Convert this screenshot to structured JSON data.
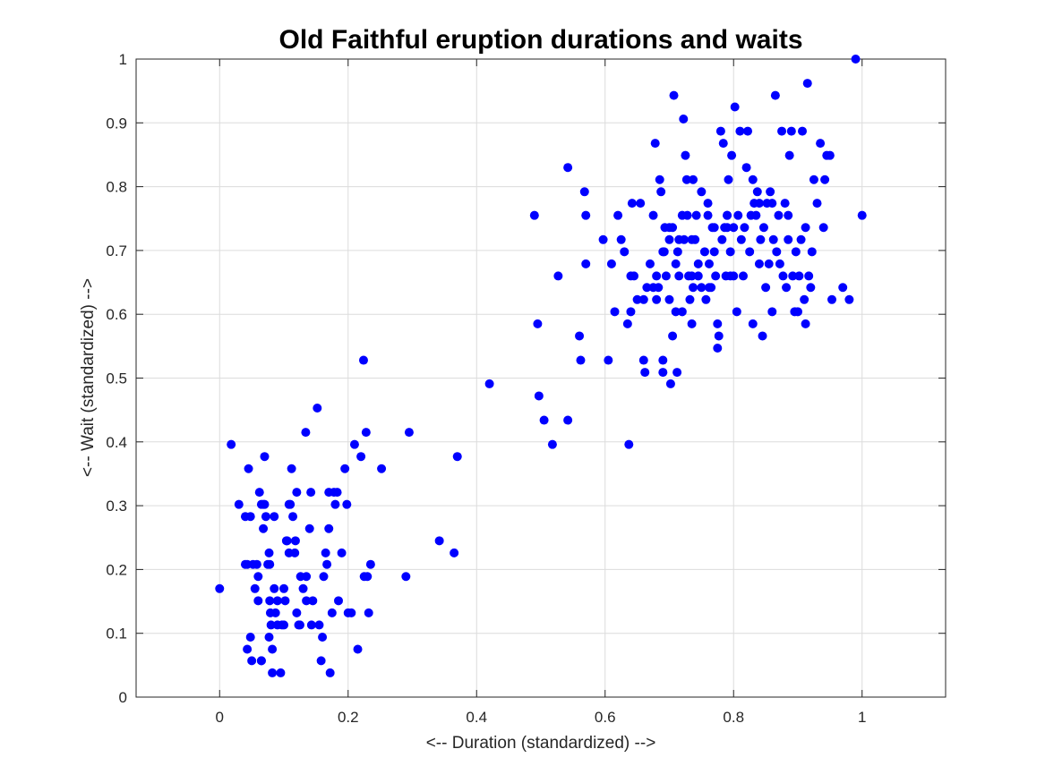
{
  "chart_data": {
    "type": "scatter",
    "title": "Old Faithful eruption durations and waits",
    "xlabel": "<-- Duration (standardized) -->",
    "ylabel": "<-- Wait (standardized) -->",
    "xlim": [
      -0.13,
      1.13
    ],
    "ylim": [
      0,
      1
    ],
    "xticks": [
      0,
      0.2,
      0.4,
      0.6,
      0.8,
      1
    ],
    "xtick_labels": [
      "0",
      "0.2",
      "0.4",
      "0.6",
      "0.8",
      "1"
    ],
    "yticks": [
      0,
      0.1,
      0.2,
      0.3,
      0.4,
      0.5,
      0.6,
      0.7,
      0.8,
      0.9,
      1
    ],
    "ytick_labels": [
      "0",
      "0.1",
      "0.2",
      "0.3",
      "0.4",
      "0.5",
      "0.6",
      "0.7",
      "0.8",
      "0.9",
      "1"
    ],
    "grid": true,
    "marker_color": "#0000ff",
    "series": [
      {
        "x": [
          0.0,
          0.018,
          0.03,
          0.04,
          0.045,
          0.043,
          0.048,
          0.043,
          0.05,
          0.055,
          0.06,
          0.06,
          0.062,
          0.065,
          0.068,
          0.07,
          0.068,
          0.072,
          0.077,
          0.078,
          0.079,
          0.08,
          0.082,
          0.085,
          0.087,
          0.09,
          0.095,
          0.097,
          0.1,
          0.102,
          0.104,
          0.108,
          0.11,
          0.112,
          0.114,
          0.117,
          0.118,
          0.12,
          0.123,
          0.126,
          0.13,
          0.134,
          0.14,
          0.142,
          0.143,
          0.145,
          0.152,
          0.158,
          0.16,
          0.162,
          0.165,
          0.167,
          0.17,
          0.172,
          0.175,
          0.178,
          0.18,
          0.183,
          0.19,
          0.195,
          0.198,
          0.205,
          0.21,
          0.215,
          0.22,
          0.224,
          0.228,
          0.23,
          0.232,
          0.235,
          0.252,
          0.29,
          0.295,
          0.342,
          0.365,
          0.37,
          0.42,
          0.04,
          0.052,
          0.058,
          0.065,
          0.075,
          0.085,
          0.09,
          0.108,
          0.125,
          0.135,
          0.155,
          0.17,
          0.185,
          0.2,
          0.225,
          0.078,
          0.1,
          0.065,
          0.048,
          0.07,
          0.105,
          0.135,
          0.077,
          0.082,
          0.12
        ],
        "y": [
          0.17,
          0.396,
          0.302,
          0.283,
          0.358,
          0.208,
          0.094,
          0.075,
          0.057,
          0.17,
          0.151,
          0.189,
          0.321,
          0.302,
          0.264,
          0.377,
          0.302,
          0.283,
          0.226,
          0.208,
          0.132,
          0.113,
          0.038,
          0.283,
          0.132,
          0.113,
          0.038,
          0.113,
          0.17,
          0.151,
          0.245,
          0.226,
          0.302,
          0.358,
          0.283,
          0.226,
          0.245,
          0.321,
          0.113,
          0.189,
          0.17,
          0.415,
          0.264,
          0.321,
          0.113,
          0.151,
          0.453,
          0.057,
          0.094,
          0.189,
          0.226,
          0.208,
          0.321,
          0.038,
          0.132,
          0.321,
          0.302,
          0.321,
          0.226,
          0.358,
          0.302,
          0.132,
          0.396,
          0.075,
          0.377,
          0.528,
          0.415,
          0.189,
          0.132,
          0.208,
          0.358,
          0.189,
          0.415,
          0.245,
          0.226,
          0.377,
          0.491,
          0.208,
          0.208,
          0.208,
          0.057,
          0.208,
          0.17,
          0.151,
          0.302,
          0.113,
          0.151,
          0.113,
          0.264,
          0.151,
          0.132,
          0.189,
          0.151,
          0.113,
          0.057,
          0.283,
          0.302,
          0.245,
          0.189,
          0.094,
          0.075,
          0.132
        ]
      },
      {
        "x": [
          0.49,
          0.495,
          0.497,
          0.505,
          0.518,
          0.527,
          0.542,
          0.542,
          0.56,
          0.562,
          0.568,
          0.57,
          0.57,
          0.597,
          0.605,
          0.61,
          0.615,
          0.62,
          0.625,
          0.63,
          0.635,
          0.637,
          0.64,
          0.64,
          0.642,
          0.645,
          0.65,
          0.655,
          0.66,
          0.662,
          0.665,
          0.67,
          0.675,
          0.678,
          0.68,
          0.683,
          0.685,
          0.687,
          0.69,
          0.69,
          0.693,
          0.695,
          0.7,
          0.702,
          0.705,
          0.707,
          0.71,
          0.712,
          0.713,
          0.715,
          0.72,
          0.722,
          0.725,
          0.727,
          0.73,
          0.732,
          0.735,
          0.737,
          0.74,
          0.742,
          0.745,
          0.75,
          0.755,
          0.757,
          0.76,
          0.762,
          0.765,
          0.767,
          0.77,
          0.772,
          0.775,
          0.777,
          0.78,
          0.782,
          0.784,
          0.786,
          0.788,
          0.79,
          0.792,
          0.795,
          0.797,
          0.8,
          0.802,
          0.805,
          0.807,
          0.81,
          0.812,
          0.815,
          0.817,
          0.82,
          0.822,
          0.825,
          0.827,
          0.83,
          0.832,
          0.835,
          0.837,
          0.84,
          0.842,
          0.845,
          0.847,
          0.85,
          0.852,
          0.855,
          0.857,
          0.86,
          0.862,
          0.865,
          0.867,
          0.87,
          0.872,
          0.875,
          0.877,
          0.88,
          0.882,
          0.885,
          0.887,
          0.89,
          0.892,
          0.895,
          0.897,
          0.9,
          0.902,
          0.905,
          0.907,
          0.91,
          0.912,
          0.915,
          0.917,
          0.92,
          0.922,
          0.925,
          0.93,
          0.935,
          0.94,
          0.942,
          0.945,
          0.95,
          0.953,
          0.97,
          0.98,
          0.99,
          1.0,
          0.71,
          0.728,
          0.775,
          0.83,
          0.86,
          0.912,
          0.7,
          0.723,
          0.705,
          0.737,
          0.692,
          0.79,
          0.795,
          0.735,
          0.745,
          0.76,
          0.84,
          0.885,
          0.68,
          0.66,
          0.675,
          0.69,
          0.7,
          0.72,
          0.715,
          0.735,
          0.75,
          0.762,
          0.77,
          0.79,
          0.8
        ],
        "y": [
          0.755,
          0.585,
          0.472,
          0.434,
          0.396,
          0.66,
          0.83,
          0.434,
          0.566,
          0.528,
          0.792,
          0.755,
          0.679,
          0.717,
          0.528,
          0.679,
          0.604,
          0.755,
          0.717,
          0.698,
          0.585,
          0.396,
          0.604,
          0.66,
          0.774,
          0.66,
          0.623,
          0.774,
          0.528,
          0.509,
          0.642,
          0.679,
          0.642,
          0.868,
          0.623,
          0.642,
          0.811,
          0.792,
          0.528,
          0.509,
          0.736,
          0.66,
          0.717,
          0.491,
          0.566,
          0.943,
          0.679,
          0.509,
          0.698,
          0.717,
          0.604,
          0.906,
          0.849,
          0.811,
          0.66,
          0.623,
          0.585,
          0.811,
          0.717,
          0.755,
          0.66,
          0.642,
          0.698,
          0.623,
          0.755,
          0.679,
          0.642,
          0.736,
          0.698,
          0.66,
          0.547,
          0.566,
          0.887,
          0.717,
          0.868,
          0.736,
          0.66,
          0.755,
          0.811,
          0.698,
          0.849,
          0.736,
          0.925,
          0.604,
          0.755,
          0.887,
          0.717,
          0.66,
          0.736,
          0.83,
          0.887,
          0.698,
          0.755,
          0.585,
          0.774,
          0.755,
          0.792,
          0.679,
          0.717,
          0.566,
          0.736,
          0.642,
          0.774,
          0.679,
          0.792,
          0.774,
          0.717,
          0.943,
          0.698,
          0.755,
          0.679,
          0.887,
          0.66,
          0.774,
          0.642,
          0.755,
          0.849,
          0.887,
          0.66,
          0.604,
          0.698,
          0.604,
          0.66,
          0.717,
          0.887,
          0.623,
          0.736,
          0.962,
          0.66,
          0.642,
          0.698,
          0.811,
          0.774,
          0.868,
          0.736,
          0.811,
          0.849,
          0.849,
          0.623,
          0.642,
          0.623,
          1.0,
          0.755,
          0.604,
          0.755,
          0.585,
          0.811,
          0.604,
          0.585,
          0.623,
          0.717,
          0.736,
          0.642,
          0.698,
          0.736,
          0.66,
          0.717,
          0.679,
          0.774,
          0.774,
          0.717,
          0.66,
          0.623,
          0.755,
          0.698,
          0.736,
          0.755,
          0.66,
          0.66,
          0.792,
          0.642,
          0.736,
          0.755,
          0.66
        ]
      }
    ]
  }
}
